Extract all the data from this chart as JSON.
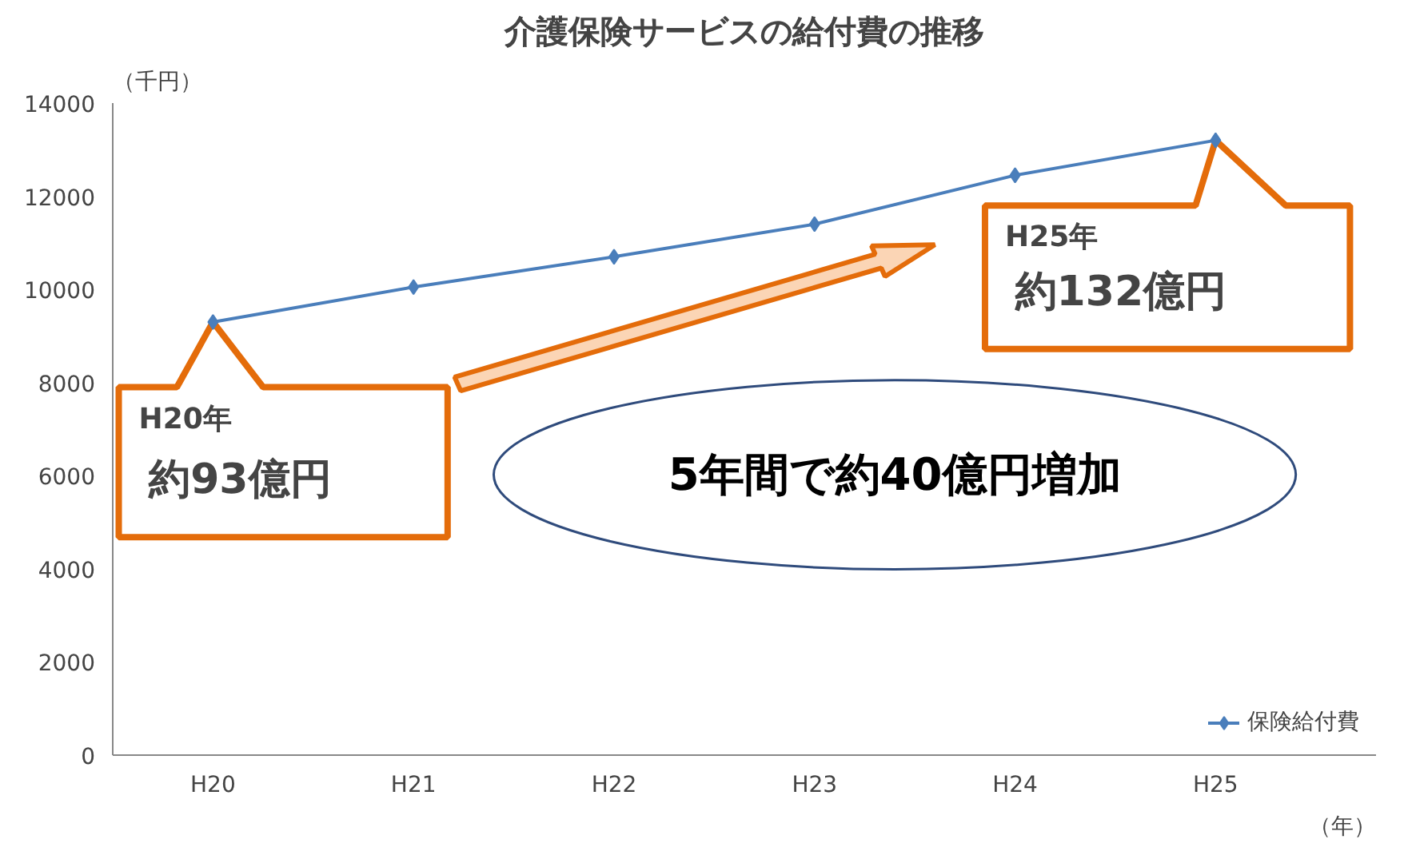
{
  "chart_data": {
    "type": "line",
    "title": "介護保険サービスの給付費の推移",
    "ylabel": "（千円）",
    "xlabel": "（年）",
    "categories": [
      "H20",
      "H21",
      "H22",
      "H23",
      "H24",
      "H25"
    ],
    "series": [
      {
        "name": "保険給付費",
        "color": "#4a7ebb",
        "values": [
          9300,
          10050,
          10700,
          11400,
          12450,
          13200
        ]
      }
    ],
    "ylim": [
      0,
      14000
    ],
    "yticks": [
      0,
      2000,
      4000,
      6000,
      8000,
      10000,
      12000,
      14000
    ],
    "marker": "diamond",
    "grid": false,
    "legend": "bottom right",
    "annotations": [
      "H20年",
      "約93億円",
      "H25年",
      "約132億円",
      "5年間で約40億円増加"
    ]
  }
}
